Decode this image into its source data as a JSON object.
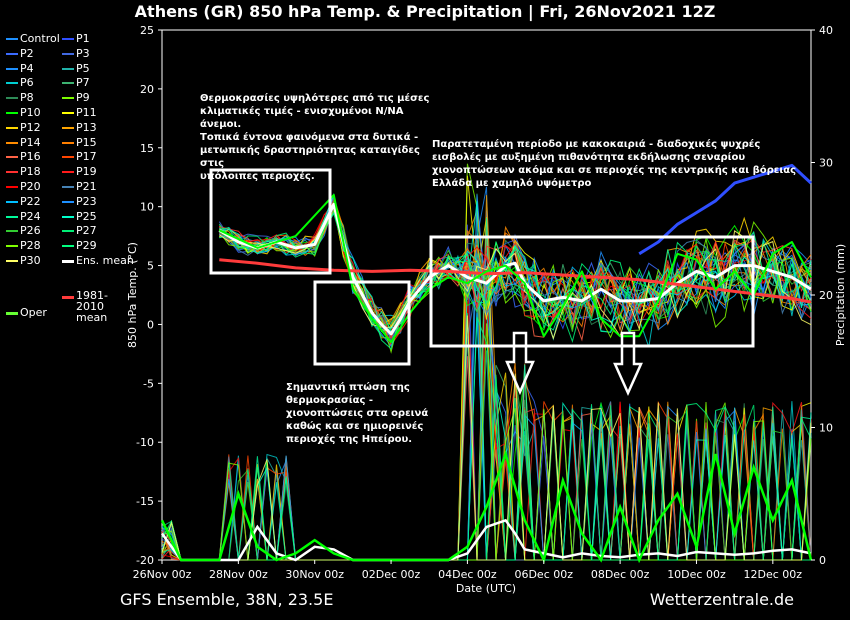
{
  "header": {
    "title": "Athens  (GR)  850 hPa Temp. & Precipitation | Fri, 26Nov2021 12Z"
  },
  "footer": {
    "left": "GFS Ensemble, 38N, 23.5E",
    "right": "Wetterzentrale.de"
  },
  "annotations": {
    "note1": "Θερμοκρασίες υψηλότερες από τις μέσες\nκλιματικές τιμές - ενισχυμένοι Ν/ΝΑ άνεμοι.\nΤοπικά έντονα φαινόμενα στα δυτικά -\nμετωπικής δραστηριότητας καταιγίδες στις\nυπόλοιπες περιοχές.",
    "note2": "Παρατεταμένη περίοδο με κακοκαιριά - διαδοχικές ψυχρές\nεισβολές με αυξημένη πιθανότητα εκδήλωσης σεναρίου\nχιονοπτώσεων ακόμα και σε περιοχές της κεντρικής και βόρειας\nΕλλάδα με χαμηλό υψόμετρο",
    "note3": "Σημαντική πτώση της\nθερμοκρασίας -\nχιονοπτώσεις στα ορεινά\nκαθώς και σε ημιορεινές\nπεριοχές της Ηπείρου."
  },
  "legend": [
    {
      "label": "Control",
      "color": "#1e90ff"
    },
    {
      "label": "P1",
      "color": "#2f4fff"
    },
    {
      "label": "P2",
      "color": "#3b6bff"
    },
    {
      "label": "P3",
      "color": "#4169e1"
    },
    {
      "label": "P4",
      "color": "#1e90ff"
    },
    {
      "label": "P5",
      "color": "#20b2aa"
    },
    {
      "label": "P6",
      "color": "#00ced1"
    },
    {
      "label": "P7",
      "color": "#3cb371"
    },
    {
      "label": "P8",
      "color": "#2e8b57"
    },
    {
      "label": "P9",
      "color": "#7cfc00"
    },
    {
      "label": "P10",
      "color": "#00ff00"
    },
    {
      "label": "P11",
      "color": "#ffff00"
    },
    {
      "label": "P12",
      "color": "#ffd700"
    },
    {
      "label": "P13",
      "color": "#ffa500"
    },
    {
      "label": "P14",
      "color": "#ff8c00"
    },
    {
      "label": "P15",
      "color": "#ff7f00"
    },
    {
      "label": "P16",
      "color": "#ff6347"
    },
    {
      "label": "P17",
      "color": "#ff4500"
    },
    {
      "label": "P18",
      "color": "#ff3030"
    },
    {
      "label": "P19",
      "color": "#ff1a1a"
    },
    {
      "label": "P20",
      "color": "#ff0000"
    },
    {
      "label": "P21",
      "color": "#4682b4"
    },
    {
      "label": "P22",
      "color": "#00bfff"
    },
    {
      "label": "P23",
      "color": "#1e90ff"
    },
    {
      "label": "P24",
      "color": "#00fa9a"
    },
    {
      "label": "P25",
      "color": "#00ffcc"
    },
    {
      "label": "P26",
      "color": "#32cd32"
    },
    {
      "label": "P27",
      "color": "#00ee76"
    },
    {
      "label": "P28",
      "color": "#7fff00"
    },
    {
      "label": "P29",
      "color": "#00ff7f"
    },
    {
      "label": "P30",
      "color": "#ffff66"
    },
    {
      "label": "Ens. mean",
      "color": "#ffffff"
    },
    {
      "label": "1981-2010\nmean",
      "color": "#ff3b3b"
    },
    {
      "label": "Oper",
      "color": "#66ff33"
    }
  ],
  "chart_data": {
    "type": "line",
    "xlabel": "Date (UTC)",
    "ylabel": "850 hPa Temp. (°C)",
    "y2label": "Precipitation (mm)",
    "x_ticks": [
      "26Nov 00z",
      "28Nov 00z",
      "30Nov 00z",
      "02Dec 00z",
      "04Dec 00z",
      "06Dec 00z",
      "08Dec 00z",
      "10Dec 00z",
      "12Dec 00z"
    ],
    "xlim_hours": [
      0,
      408
    ],
    "ylim": [
      -20,
      25
    ],
    "y_ticks": [
      25,
      20,
      15,
      10,
      5,
      0,
      -5,
      -10,
      -15,
      -20
    ],
    "y2lim": [
      0,
      40
    ],
    "y2_ticks": [
      40,
      30,
      20,
      10,
      0
    ],
    "series": [
      {
        "name": "Ens. mean",
        "color": "#ffffff",
        "width": 3,
        "x": [
          36,
          48,
          60,
          72,
          84,
          96,
          108,
          114,
          120,
          126,
          132,
          138,
          144,
          150,
          156,
          162,
          168,
          174,
          180,
          186,
          192,
          204,
          216,
          222,
          228,
          240,
          252,
          264,
          276,
          288,
          300,
          312,
          324,
          336,
          348,
          360,
          372,
          384,
          396,
          408
        ],
        "y": [
          8,
          7,
          6.5,
          7,
          6.5,
          6.8,
          10.2,
          7,
          4,
          2.5,
          1,
          0,
          -0.8,
          0.5,
          2,
          3,
          4,
          4.5,
          5,
          4.5,
          4,
          3.5,
          5,
          5.2,
          3.5,
          2,
          2.3,
          2,
          3,
          2,
          2,
          2.2,
          3.5,
          4.5,
          4,
          5,
          5,
          4.5,
          4,
          3
        ]
      },
      {
        "name": "1981-2010 mean",
        "color": "#ff3b3b",
        "width": 3,
        "x": [
          36,
          60,
          84,
          108,
          132,
          156,
          180,
          204,
          228,
          252,
          276,
          300,
          324,
          348,
          372,
          396,
          408
        ],
        "y": [
          5.5,
          5.2,
          4.8,
          4.6,
          4.5,
          4.6,
          4.5,
          4.3,
          4.4,
          4.2,
          4.0,
          3.8,
          3.4,
          3.0,
          2.6,
          2.2,
          1.9
        ]
      },
      {
        "name": "P1",
        "color": "#2f4fff",
        "width": 3,
        "x": [
          300,
          312,
          324,
          336,
          348,
          360,
          372,
          384,
          396,
          408
        ],
        "y": [
          6,
          7,
          8.5,
          9.5,
          10.5,
          12,
          12.5,
          13,
          13.5,
          12
        ]
      },
      {
        "name": "P10",
        "color": "#00ff00",
        "width": 2,
        "x": [
          36,
          60,
          84,
          108,
          120,
          132,
          144,
          156,
          168,
          180,
          192,
          204,
          216,
          228,
          240,
          252,
          264,
          276,
          288,
          300,
          312,
          324,
          336,
          348,
          360,
          372,
          384,
          396,
          408
        ],
        "y": [
          8,
          6.5,
          7.5,
          11,
          3,
          0.5,
          -1.5,
          1,
          3,
          4,
          3.5,
          4.5,
          5,
          3.5,
          -1,
          1.5,
          4.5,
          0.5,
          -1,
          -1,
          2,
          6,
          5.5,
          3,
          4.5,
          2.5,
          6,
          7,
          4
        ]
      }
    ],
    "precip": [
      {
        "name": "Ens. mean",
        "color": "#ffffff",
        "x": [
          0,
          12,
          24,
          36,
          48,
          60,
          72,
          84,
          96,
          108,
          120,
          132,
          144,
          156,
          168,
          180,
          192,
          204,
          216,
          222,
          228,
          240,
          252,
          264,
          276,
          288,
          300,
          312,
          324,
          336,
          348,
          360,
          372,
          384,
          396,
          408
        ],
        "y": [
          2,
          0,
          0,
          0,
          0,
          2.5,
          0.5,
          0,
          1,
          0.8,
          0,
          0,
          0,
          0,
          0,
          0,
          0.5,
          2.5,
          3,
          2,
          0.8,
          0.5,
          0.2,
          0.5,
          0.3,
          0.2,
          0.4,
          0.5,
          0.3,
          0.6,
          0.5,
          0.4,
          0.5,
          0.7,
          0.8,
          0.5
        ]
      },
      {
        "name": "P10",
        "color": "#00ff00",
        "x": [
          0,
          12,
          24,
          36,
          48,
          60,
          72,
          84,
          96,
          108,
          120,
          132,
          144,
          156,
          168,
          180,
          192,
          204,
          216,
          228,
          240,
          252,
          264,
          276,
          288,
          300,
          312,
          324,
          336,
          348,
          360,
          372,
          384,
          396,
          408
        ],
        "y": [
          3,
          0,
          0,
          0,
          5,
          1,
          0,
          0.5,
          1.5,
          0.5,
          0,
          0,
          0,
          0,
          0,
          0,
          1,
          4,
          8,
          3,
          0,
          6,
          2,
          0,
          4,
          0,
          3,
          5,
          1,
          8,
          2,
          7,
          3,
          6,
          0
        ]
      }
    ]
  }
}
